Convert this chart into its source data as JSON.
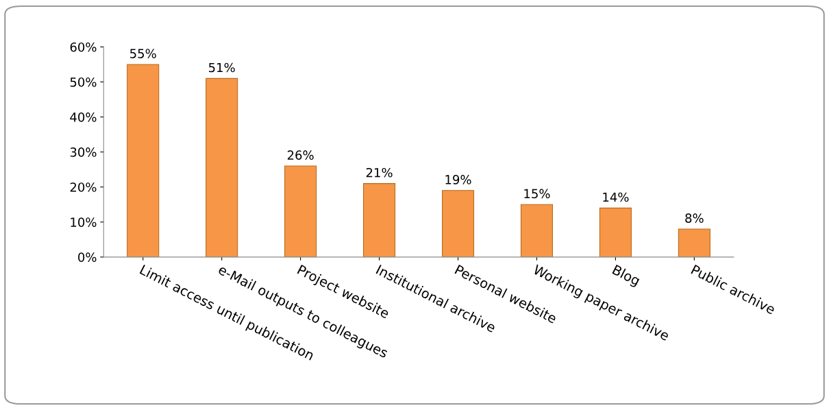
{
  "chart_data": {
    "type": "bar",
    "categories": [
      "Limit access until publication",
      "e-Mail outputs to colleagues",
      "Project website",
      "Institutional archive",
      "Personal website",
      "Working paper archive",
      "Blog",
      "Public archive"
    ],
    "values": [
      55,
      51,
      26,
      21,
      19,
      15,
      14,
      8
    ],
    "value_labels": [
      "55%",
      "51%",
      "26%",
      "21%",
      "19%",
      "15%",
      "14%",
      "8%"
    ],
    "color": "#f79646",
    "ylim": [
      0,
      60
    ],
    "yticks": [
      {
        "value": 0,
        "label": "0%"
      },
      {
        "value": 10,
        "label": "10%"
      },
      {
        "value": 20,
        "label": "20%"
      },
      {
        "value": 30,
        "label": "30%"
      },
      {
        "value": 40,
        "label": "40%"
      },
      {
        "value": 50,
        "label": "50%"
      },
      {
        "value": 60,
        "label": "60%"
      }
    ],
    "grid": false,
    "legend": false
  }
}
